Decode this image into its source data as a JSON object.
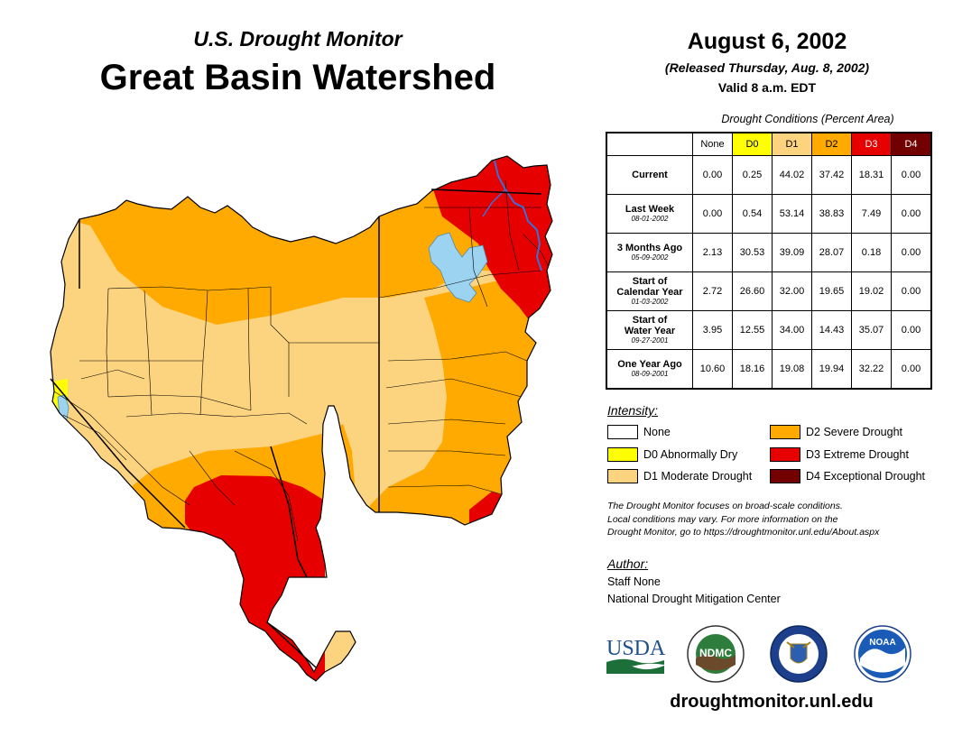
{
  "header": {
    "subtitle": "U.S. Drought Monitor",
    "title": "Great Basin Watershed",
    "date": "August 6, 2002",
    "released": "(Released Thursday, Aug. 8, 2002)",
    "valid": "Valid 8 a.m. EDT"
  },
  "table": {
    "caption": "Drought Conditions (Percent Area)",
    "columns": [
      "None",
      "D0",
      "D1",
      "D2",
      "D3",
      "D4"
    ],
    "column_colors": [
      "#ffffff",
      "#ffff00",
      "#fcd37f",
      "#ffaa00",
      "#e60000",
      "#730000"
    ],
    "rows": [
      {
        "label1": "Current",
        "label2": "",
        "date": "",
        "values": [
          "0.00",
          "0.25",
          "44.02",
          "37.42",
          "18.31",
          "0.00"
        ]
      },
      {
        "label1": "Last Week",
        "label2": "",
        "date": "08-01-2002",
        "values": [
          "0.00",
          "0.54",
          "53.14",
          "38.83",
          "7.49",
          "0.00"
        ]
      },
      {
        "label1": "3 Months Ago",
        "label2": "",
        "date": "05-09-2002",
        "values": [
          "2.13",
          "30.53",
          "39.09",
          "28.07",
          "0.18",
          "0.00"
        ]
      },
      {
        "label1": "Start of",
        "label2": "Calendar Year",
        "date": "01-03-2002",
        "values": [
          "2.72",
          "26.60",
          "32.00",
          "19.65",
          "19.02",
          "0.00"
        ]
      },
      {
        "label1": "Start of",
        "label2": "Water Year",
        "date": "09-27-2001",
        "values": [
          "3.95",
          "12.55",
          "34.00",
          "14.43",
          "35.07",
          "0.00"
        ]
      },
      {
        "label1": "One Year Ago",
        "label2": "",
        "date": "08-09-2001",
        "values": [
          "10.60",
          "18.16",
          "19.08",
          "19.94",
          "32.22",
          "0.00"
        ]
      }
    ]
  },
  "legend": {
    "title": "Intensity:",
    "items": [
      {
        "label": "None",
        "color": "#ffffff"
      },
      {
        "label": "D0 Abnormally Dry",
        "color": "#ffff00"
      },
      {
        "label": "D1 Moderate Drought",
        "color": "#fcd37f"
      },
      {
        "label": "D2 Severe Drought",
        "color": "#ffaa00"
      },
      {
        "label": "D3 Extreme Drought",
        "color": "#e60000"
      },
      {
        "label": "D4 Exceptional Drought",
        "color": "#730000"
      }
    ]
  },
  "note": {
    "line1": "The Drought Monitor focuses on broad-scale conditions.",
    "line2": "Local conditions may vary. For more information on the",
    "line3": "Drought Monitor, go to https://droughtmonitor.unl.edu/About.aspx"
  },
  "author": {
    "title": "Author:",
    "name": "Staff None",
    "org": "National Drought Mitigation Center"
  },
  "logos": {
    "usda": "USDA",
    "ndmc": "NDMC",
    "noaa": "NOAA"
  },
  "footer": {
    "website": "droughtmonitor.unl.edu"
  },
  "colors": {
    "d1": "#fcd37f",
    "d2": "#ffaa00",
    "d3": "#e60000",
    "water": "#9cd3f0",
    "river": "#3a6fd8"
  }
}
